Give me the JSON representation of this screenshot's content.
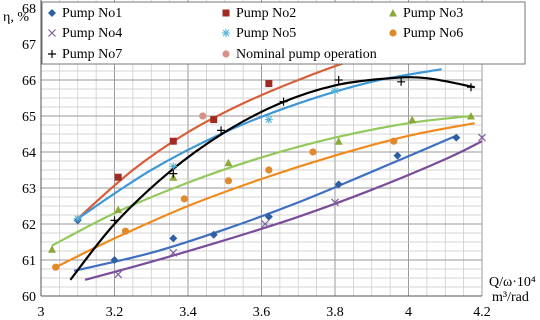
{
  "chart_data": {
    "type": "scatter",
    "ylabel": "η, %",
    "xlabel_line1": "Q/ω·10⁴",
    "xlabel_line2": "m³/rad",
    "xlim": [
      3,
      4.2
    ],
    "ylim": [
      60,
      68
    ],
    "x_ticks": [
      "3",
      "3.2",
      "3.4",
      "3.6",
      "3.8",
      "4",
      "4.2"
    ],
    "y_ticks": [
      "60",
      "61",
      "62",
      "63",
      "64",
      "65",
      "66",
      "67",
      "68"
    ],
    "grid": true,
    "legend_position": "top",
    "series": [
      {
        "name": "Pump No1",
        "marker": "diamond",
        "color": "#2e5fa3",
        "points": [
          [
            3.1,
            62.1
          ],
          [
            3.2,
            61.0
          ],
          [
            3.36,
            61.6
          ],
          [
            3.47,
            61.7
          ],
          [
            3.62,
            62.2
          ],
          [
            3.81,
            63.1
          ],
          [
            3.97,
            63.9
          ],
          [
            4.13,
            64.4
          ]
        ],
        "trend": [
          [
            3.09,
            60.7
          ],
          [
            3.3,
            61.2
          ],
          [
            3.5,
            61.85
          ],
          [
            3.7,
            62.6
          ],
          [
            3.9,
            63.45
          ],
          [
            4.13,
            64.45
          ]
        ],
        "trend_color": "#3f6fc0"
      },
      {
        "name": "Pump No2",
        "marker": "square",
        "color": "#a12a25",
        "points": [
          [
            3.21,
            63.3
          ],
          [
            3.36,
            64.3
          ],
          [
            3.47,
            64.9
          ],
          [
            3.62,
            65.9
          ],
          [
            3.83,
            66.8
          ],
          [
            4.01,
            67.0
          ],
          [
            4.19,
            66.9
          ]
        ],
        "trend": [
          [
            3.1,
            62.15
          ],
          [
            3.25,
            63.5
          ],
          [
            3.4,
            64.55
          ],
          [
            3.55,
            65.35
          ],
          [
            3.7,
            66.0
          ],
          [
            3.85,
            66.55
          ],
          [
            4.0,
            66.9
          ],
          [
            4.1,
            67.0
          ],
          [
            4.2,
            66.95
          ]
        ],
        "trend_color": "#d75f3a"
      },
      {
        "name": "Pump No3",
        "marker": "triangle",
        "color": "#8ba83c",
        "points": [
          [
            3.03,
            61.3
          ],
          [
            3.21,
            62.4
          ],
          [
            3.36,
            63.3
          ],
          [
            3.51,
            63.7
          ],
          [
            3.81,
            64.3
          ],
          [
            4.01,
            64.9
          ],
          [
            4.17,
            65.0
          ]
        ],
        "trend": [
          [
            3.03,
            61.4
          ],
          [
            3.2,
            62.3
          ],
          [
            3.4,
            63.15
          ],
          [
            3.6,
            63.85
          ],
          [
            3.8,
            64.4
          ],
          [
            4.0,
            64.8
          ],
          [
            4.17,
            65.0
          ]
        ],
        "trend_color": "#92c95c"
      },
      {
        "name": "Pump No4",
        "marker": "x",
        "color": "#7d5d9e",
        "points": [
          [
            3.21,
            60.6
          ],
          [
            3.36,
            61.2
          ],
          [
            3.61,
            62.0
          ],
          [
            3.8,
            62.6
          ],
          [
            4.2,
            64.4
          ]
        ],
        "trend": [
          [
            3.12,
            60.45
          ],
          [
            3.3,
            60.95
          ],
          [
            3.5,
            61.55
          ],
          [
            3.7,
            62.2
          ],
          [
            3.9,
            62.95
          ],
          [
            4.1,
            63.8
          ],
          [
            4.2,
            64.3
          ]
        ],
        "trend_color": "#7a4d9a"
      },
      {
        "name": "Pump No5",
        "marker": "star",
        "color": "#4eb1d6",
        "points": [
          [
            3.1,
            62.15
          ],
          [
            3.36,
            63.6
          ],
          [
            3.62,
            64.9
          ],
          [
            3.8,
            65.7
          ]
        ],
        "trend": [
          [
            3.1,
            62.15
          ],
          [
            3.3,
            63.5
          ],
          [
            3.5,
            64.55
          ],
          [
            3.7,
            65.35
          ],
          [
            3.9,
            65.95
          ],
          [
            4.09,
            66.3
          ]
        ],
        "trend_color": "#3f98d6"
      },
      {
        "name": "Pump No6",
        "marker": "circle",
        "color": "#e08a2c",
        "points": [
          [
            3.04,
            60.8
          ],
          [
            3.23,
            61.8
          ],
          [
            3.39,
            62.7
          ],
          [
            3.51,
            63.2
          ],
          [
            3.62,
            63.5
          ],
          [
            3.74,
            64.0
          ],
          [
            3.96,
            64.3
          ]
        ],
        "trend": [
          [
            3.04,
            60.8
          ],
          [
            3.2,
            61.6
          ],
          [
            3.4,
            62.5
          ],
          [
            3.6,
            63.25
          ],
          [
            3.8,
            63.9
          ],
          [
            4.0,
            64.45
          ],
          [
            4.18,
            64.8
          ]
        ],
        "trend_color": "#f08a1c"
      },
      {
        "name": "Pump No7",
        "marker": "plus",
        "color": "#000000",
        "points": [
          [
            3.2,
            62.1
          ],
          [
            3.36,
            63.4
          ],
          [
            3.49,
            64.6
          ],
          [
            3.66,
            65.4
          ],
          [
            3.81,
            66.0
          ],
          [
            3.98,
            65.95
          ],
          [
            4.17,
            65.8
          ]
        ],
        "trend": [
          [
            3.08,
            60.45
          ],
          [
            3.2,
            62.0
          ],
          [
            3.35,
            63.45
          ],
          [
            3.5,
            64.55
          ],
          [
            3.65,
            65.35
          ],
          [
            3.8,
            65.85
          ],
          [
            3.95,
            66.05
          ],
          [
            4.05,
            66.05
          ],
          [
            4.18,
            65.8
          ]
        ],
        "trend_color": "#000000"
      },
      {
        "name": "Nominal pump operation",
        "marker": "circle",
        "color": "#d9908a",
        "points": [
          [
            3.44,
            65.0
          ]
        ]
      }
    ]
  }
}
